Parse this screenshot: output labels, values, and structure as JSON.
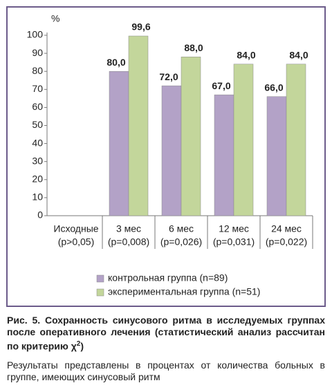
{
  "chart_data": {
    "type": "bar",
    "y_label": "%",
    "categories": [
      [
        "Исходные",
        "(p>0,05)"
      ],
      [
        "3 мес",
        "(p=0,008)"
      ],
      [
        "6 мес",
        "(p=0,026)"
      ],
      [
        "12 мес",
        "(p=0,031)"
      ],
      [
        "24 мес",
        "(p=0,022)"
      ]
    ],
    "series": [
      {
        "name": "контрольная группа (n=89)",
        "color": "#b3a2c7",
        "values": [
          null,
          80,
          72,
          67,
          66
        ],
        "value_labels": [
          null,
          "80,0",
          "72,0",
          "67,0",
          "66,0"
        ]
      },
      {
        "name": "экспериментальная группа (n=51)",
        "color": "#c3d69b",
        "values": [
          null,
          99.6,
          88,
          84,
          84
        ],
        "value_labels": [
          null,
          "99,6",
          "88,0",
          "84,0",
          "84,0"
        ]
      }
    ],
    "ylim": [
      0,
      100
    ],
    "yticks": [
      0,
      10,
      20,
      30,
      40,
      50,
      60,
      70,
      80,
      90,
      100
    ],
    "grid": false,
    "legend": "bottom"
  },
  "caption": {
    "title": "Рис. 5. Сохранность синусового ритма в исследуемых группах после оперативного лечения (статистический анализ рассчитан по критерию χ",
    "title_sup": "2",
    "title_end": ")",
    "text": "Результаты представлены в процентах от количества больных в группе, имеющих синусовый ритм"
  }
}
